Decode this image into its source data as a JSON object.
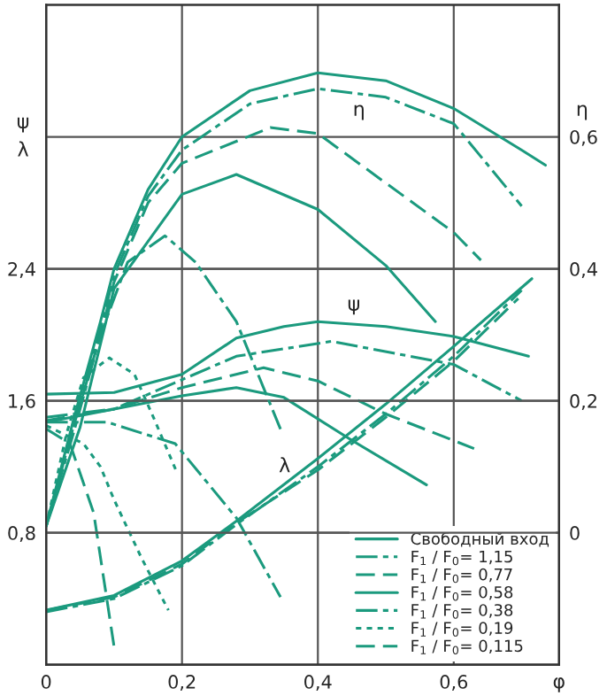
{
  "chart_data": {
    "type": "line",
    "xlabel": "φ",
    "ylabel": "ψ\nλ",
    "y2label": "η",
    "xlim": [
      0,
      0.755
    ],
    "xticks": [
      0,
      {
        "value": 0.2,
        "label": "0,2"
      },
      {
        "value": 0.4,
        "label": "0,4"
      },
      {
        "value": 0.6,
        "label": "0,6"
      }
    ],
    "ylim": [
      0,
      4.0
    ],
    "yticks": [
      {
        "value": 0.8,
        "label": "0,8"
      },
      {
        "value": 1.6,
        "label": "1,6"
      },
      {
        "value": 2.4,
        "label": "2,4"
      }
    ],
    "y2lim": [
      -0.2,
      0.8
    ],
    "y2ticks": [
      0,
      {
        "value": 0.2,
        "label": "0,2"
      },
      {
        "value": 0.4,
        "label": "0,4"
      },
      {
        "value": 0.6,
        "label": "0,6"
      }
    ],
    "grid": true,
    "legend": "bottom right",
    "marker": "none",
    "annotations": [
      "η",
      "ψ",
      "λ"
    ],
    "series": [
      {
        "name": "Свободный вход",
        "color": "#1b9a7e",
        "line_style": "solid",
        "axis": "y2",
        "x": [
          0,
          0.04,
          0.08,
          0.1,
          0.15,
          0.2,
          0.3,
          0.4,
          0.5,
          0.6,
          0.7,
          0.735
        ],
        "values": [
          0.01,
          0.17,
          0.32,
          0.4,
          0.52,
          0.6,
          0.67,
          0.697,
          0.685,
          0.643,
          0.58,
          0.557
        ]
      },
      {
        "color": "#1b9a7e",
        "line_style": "solid",
        "x": [
          0,
          0.1,
          0.2,
          0.28,
          0.35,
          0.4,
          0.5,
          0.6,
          0.71
        ],
        "values": [
          1.64,
          1.65,
          1.76,
          1.98,
          2.05,
          2.08,
          2.05,
          1.99,
          1.87
        ]
      },
      {
        "color": "#1b9a7e",
        "line_style": "solid",
        "x": [
          0,
          0.1,
          0.2,
          0.28,
          0.4,
          0.5,
          0.6,
          0.715
        ],
        "values": [
          0.33,
          0.42,
          0.63,
          0.87,
          1.25,
          1.58,
          1.93,
          2.34
        ]
      },
      {
        "name": "F$_{1}$ / F$_{0}$= 1,15",
        "color": "#1b9a7e",
        "line_style": "dashdot",
        "axis": "y2",
        "x": [
          0,
          0.04,
          0.08,
          0.1,
          0.15,
          0.2,
          0.3,
          0.4,
          0.5,
          0.6,
          0.7
        ],
        "values": [
          0.01,
          0.16,
          0.31,
          0.39,
          0.51,
          0.58,
          0.65,
          0.673,
          0.66,
          0.62,
          0.495
        ]
      },
      {
        "color": "#1b9a7e",
        "line_style": "dashdot",
        "x": [
          0,
          0.1,
          0.19,
          0.28,
          0.42,
          0.6,
          0.7
        ],
        "values": [
          1.5,
          1.55,
          1.71,
          1.87,
          1.96,
          1.82,
          1.6
        ]
      },
      {
        "color": "#1b9a7e",
        "line_style": "dashdot",
        "x": [
          0,
          0.1,
          0.2,
          0.28,
          0.4,
          0.5,
          0.6,
          0.7
        ],
        "values": [
          0.32,
          0.4,
          0.6,
          0.85,
          1.2,
          1.52,
          1.87,
          2.27
        ]
      },
      {
        "name": "F$_{1}$ / F$_{0}$= 0,77",
        "color": "#1b9a7e",
        "line_style": "dashed",
        "axis": "y2",
        "x": [
          0,
          0.04,
          0.08,
          0.1,
          0.15,
          0.2,
          0.33,
          0.4,
          0.5,
          0.6,
          0.64
        ],
        "values": [
          0.01,
          0.16,
          0.3,
          0.38,
          0.5,
          0.56,
          0.614,
          0.605,
          0.53,
          0.455,
          0.413
        ]
      },
      {
        "color": "#1b9a7e",
        "line_style": "dashed",
        "x": [
          0,
          0.1,
          0.2,
          0.32,
          0.4,
          0.5,
          0.63
        ],
        "values": [
          1.48,
          1.55,
          1.68,
          1.8,
          1.72,
          1.52,
          1.31
        ]
      },
      {
        "color": "#1b9a7e",
        "line_style": "dashed",
        "x": [
          0,
          0.1,
          0.2,
          0.28,
          0.4,
          0.5,
          0.6,
          0.695
        ],
        "values": [
          0.33,
          0.41,
          0.61,
          0.86,
          1.18,
          1.5,
          1.84,
          2.22
        ]
      },
      {
        "name": "F$_{1}$ / F$_{0}$= 0,58",
        "color": "#1b9a7e",
        "line_style": "solid",
        "axis": "y2",
        "x": [
          0,
          0.05,
          0.1,
          0.2,
          0.28,
          0.4,
          0.5,
          0.573
        ],
        "values": [
          0.01,
          0.16,
          0.37,
          0.513,
          0.543,
          0.49,
          0.405,
          0.32
        ]
      },
      {
        "color": "#1b9a7e",
        "line_style": "solid",
        "x": [
          0,
          0.1,
          0.2,
          0.28,
          0.35,
          0.45,
          0.56
        ],
        "values": [
          1.47,
          1.55,
          1.63,
          1.68,
          1.62,
          1.36,
          1.09
        ]
      },
      {
        "name": "F$_{1}$ / F$_{0}$= 0,38",
        "color": "#1b9a7e",
        "line_style": "dashdot",
        "axis": "y2",
        "x": [
          0,
          0.04,
          0.08,
          0.12,
          0.175,
          0.22,
          0.28,
          0.345
        ],
        "values": [
          0.01,
          0.15,
          0.3,
          0.41,
          0.45,
          0.41,
          0.32,
          0.157
        ]
      },
      {
        "color": "#1b9a7e",
        "line_style": "dashdot",
        "x": [
          0,
          0.09,
          0.19,
          0.28,
          0.345
        ],
        "values": [
          1.47,
          1.47,
          1.34,
          0.89,
          0.41
        ]
      },
      {
        "name": "F$_{1}$ / F$_{0}$= 0,19",
        "color": "#1b9a7e",
        "line_style": "dotted",
        "axis": "y2",
        "x": [
          0,
          0.03,
          0.055,
          0.093,
          0.13,
          0.16,
          0.193
        ],
        "values": [
          0.01,
          0.15,
          0.235,
          0.265,
          0.24,
          0.17,
          0.09
        ]
      },
      {
        "color": "#1b9a7e",
        "line_style": "dotted",
        "x": [
          0,
          0.055,
          0.08,
          0.1,
          0.14,
          0.18
        ],
        "values": [
          1.45,
          1.34,
          1.2,
          1.0,
          0.65,
          0.33
        ]
      },
      {
        "name": "F$_{1}$ / F$_{0}$= 0,115",
        "color": "#1b9a7e",
        "line_style": "dashed",
        "x": [
          0,
          0.035,
          0.07,
          0.1
        ],
        "values": [
          1.43,
          1.34,
          0.92,
          0.11
        ]
      }
    ]
  }
}
